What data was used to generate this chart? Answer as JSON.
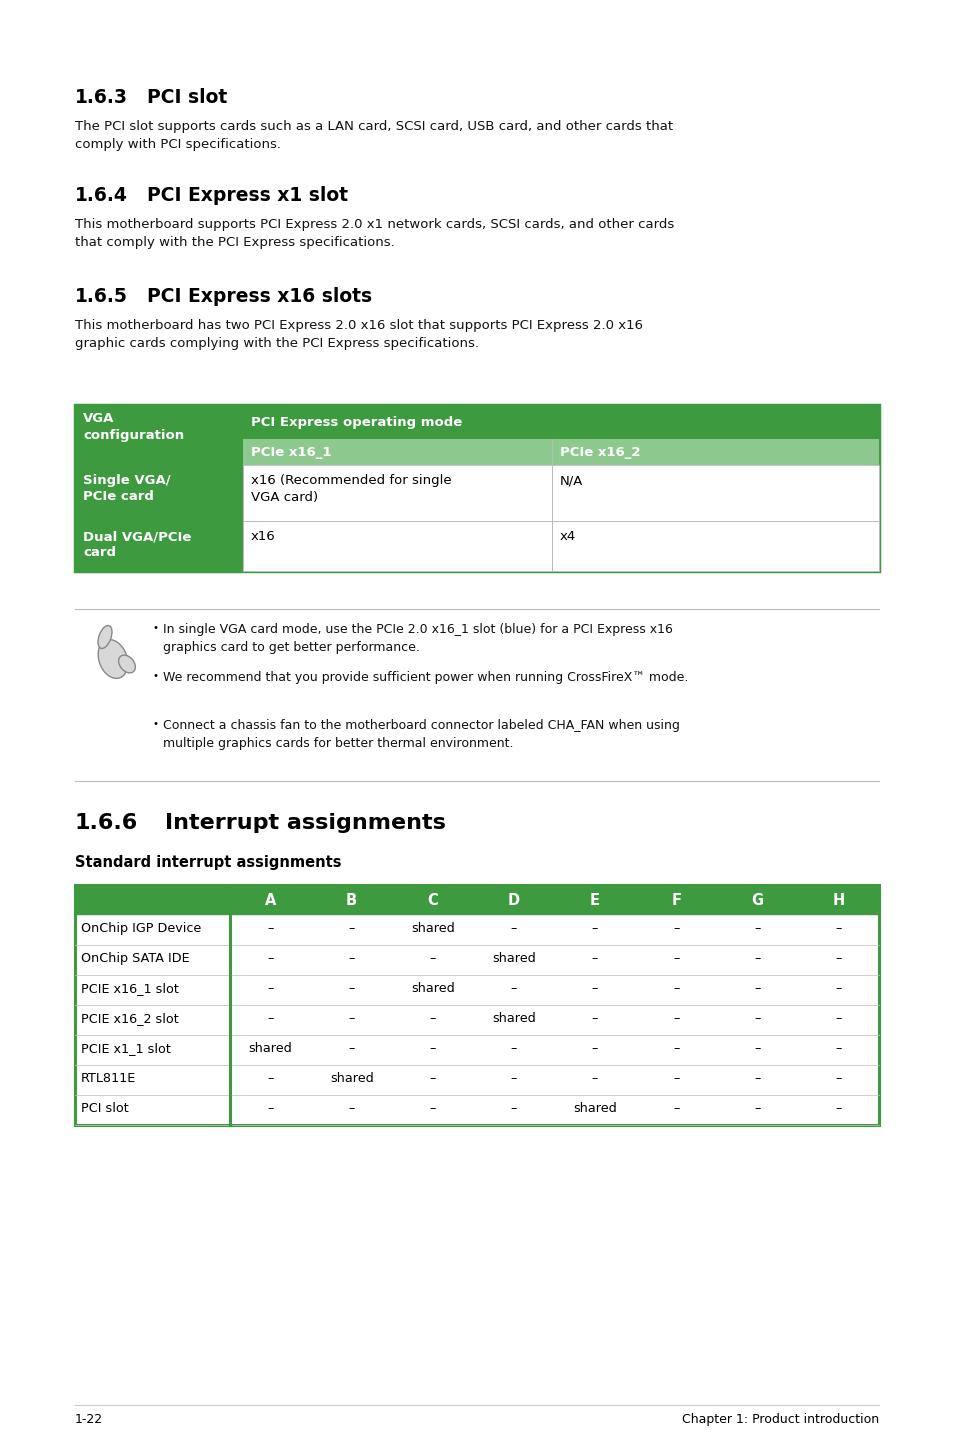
{
  "page_bg": "#ffffff",
  "green_dark": "#3d9a3e",
  "green_light": "#8dc88e",
  "section163": {
    "number": "1.6.3",
    "title": "PCI slot",
    "body": "The PCI slot supports cards such as a LAN card, SCSI card, USB card, and other cards that\ncomply with PCI specifications."
  },
  "section164": {
    "number": "1.6.4",
    "title": "PCI Express x1 slot",
    "body": "This motherboard supports PCI Express 2.0 x1 network cards, SCSI cards, and other cards\nthat comply with the PCI Express specifications."
  },
  "section165": {
    "number": "1.6.5",
    "title": "PCI Express x16 slots",
    "body": "This motherboard has two PCI Express 2.0 x16 slot that supports PCI Express 2.0 x16\ngraphic cards complying with the PCI Express specifications."
  },
  "vga_table": {
    "col1_header": "VGA\nconfiguration",
    "col2_header": "PCI Express operating mode",
    "col2a_sub": "PCIe x16_1",
    "col2b_sub": "PCIe x16_2",
    "rows": [
      {
        "col1": "Single VGA/\nPCIe card",
        "col2a": "x16 (Recommended for single\nVGA card)",
        "col2b": "N/A"
      },
      {
        "col1": "Dual VGA/PCIe\ncard",
        "col2a": "x16",
        "col2b": "x4"
      }
    ]
  },
  "note_bullets": [
    "In single VGA card mode, use the PCIe 2.0 x16_1 slot (blue) for a PCI Express x16\ngraphics card to get better performance.",
    "We recommend that you provide sufficient power when running CrossFireX™ mode.",
    "Connect a chassis fan to the motherboard connector labeled CHA_FAN when using\nmultiple graphics cards for better thermal environment."
  ],
  "section166": {
    "number": "1.6.6",
    "title": "Interrupt assignments",
    "subtitle": "Standard interrupt assignments"
  },
  "interrupt_table": {
    "headers": [
      "",
      "A",
      "B",
      "C",
      "D",
      "E",
      "F",
      "G",
      "H"
    ],
    "rows": [
      [
        "OnChip IGP Device",
        "–",
        "–",
        "shared",
        "–",
        "–",
        "–",
        "–",
        "–"
      ],
      [
        "OnChip SATA IDE",
        "–",
        "–",
        "–",
        "shared",
        "–",
        "–",
        "–",
        "–"
      ],
      [
        "PCIE x16_1 slot",
        "–",
        "–",
        "shared",
        "–",
        "–",
        "–",
        "–",
        "–"
      ],
      [
        "PCIE x16_2 slot",
        "–",
        "–",
        "–",
        "shared",
        "–",
        "–",
        "–",
        "–"
      ],
      [
        "PCIE x1_1 slot",
        "shared",
        "–",
        "–",
        "–",
        "–",
        "–",
        "–",
        "–"
      ],
      [
        "RTL811E",
        "–",
        "shared",
        "–",
        "–",
        "–",
        "–",
        "–",
        "–"
      ],
      [
        "PCI slot",
        "–",
        "–",
        "–",
        "–",
        "shared",
        "–",
        "–",
        "–"
      ]
    ]
  },
  "footer_left": "1-22",
  "footer_right": "Chapter 1: Product introduction"
}
